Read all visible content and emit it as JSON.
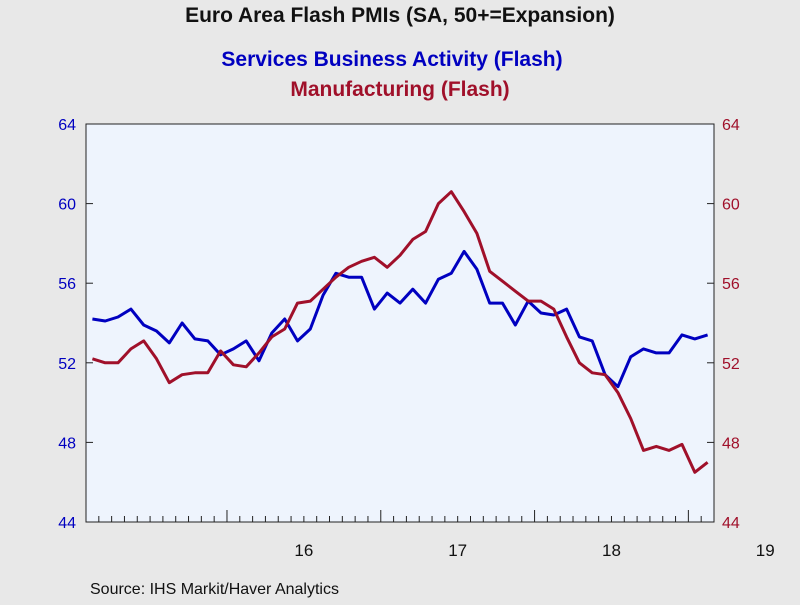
{
  "chart_data": {
    "type": "line",
    "title": "Euro Area Flash PMIs (SA, 50+=Expansion)",
    "xlabel": "",
    "ylabel": "",
    "x_axis_labels": [
      "16",
      "17",
      "18",
      "19"
    ],
    "ylim_left": [
      44,
      64
    ],
    "ylim_right": [
      44,
      64
    ],
    "yticks_left": [
      "44",
      "48",
      "52",
      "56",
      "60",
      "64"
    ],
    "yticks_right": [
      "44",
      "48",
      "52",
      "56",
      "60",
      "64"
    ],
    "grid": false,
    "x_start": "2015-02",
    "x_end": "2019-02",
    "series": [
      {
        "name": "Services Business Activity (Flash)",
        "color": "#0000c0",
        "axis": "left",
        "values": [
          54.2,
          54.1,
          54.3,
          54.7,
          53.9,
          53.6,
          53.0,
          54.0,
          53.2,
          53.1,
          52.4,
          52.7,
          53.1,
          52.1,
          53.5,
          54.2,
          53.1,
          53.7,
          55.4,
          56.5,
          56.3,
          56.3,
          54.7,
          55.5,
          55.0,
          55.7,
          55.0,
          56.2,
          56.5,
          57.6,
          56.7,
          55.0,
          55.0,
          53.9,
          55.1,
          54.5,
          54.4,
          54.7,
          53.3,
          53.1,
          51.4,
          50.8,
          52.3,
          52.7,
          52.5,
          52.5,
          53.4,
          53.2,
          53.4
        ]
      },
      {
        "name": "Manufacturing  (Flash)",
        "color": "#a0102a",
        "axis": "right",
        "values": [
          52.2,
          52.0,
          52.0,
          52.7,
          53.1,
          52.2,
          51.0,
          51.4,
          51.5,
          51.5,
          52.6,
          51.9,
          51.8,
          52.5,
          53.3,
          53.7,
          55.0,
          55.1,
          55.7,
          56.3,
          56.8,
          57.1,
          57.3,
          56.8,
          57.4,
          58.2,
          58.6,
          60.0,
          60.6,
          59.6,
          58.5,
          56.6,
          56.1,
          55.6,
          55.1,
          55.1,
          54.7,
          53.3,
          52.0,
          51.5,
          51.4,
          50.5,
          49.2,
          47.6,
          47.8,
          47.6,
          47.9,
          46.5,
          47.0
        ]
      }
    ]
  },
  "source": "Source:  IHS Markit/Haver Analytics"
}
